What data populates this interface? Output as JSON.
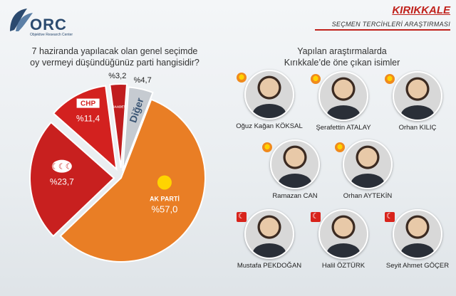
{
  "header": {
    "logo_text": "ORC",
    "logo_sub": "Objektive Research Center",
    "city": "KIRIKKALE",
    "subtitle": "SEÇMEN TERCİHLERİ ARAŞTIRMASI"
  },
  "question": {
    "line1": "7 haziranda yapılacak olan genel seçimde",
    "line2": "oy vermeyi düşündüğünüz parti hangisidir?"
  },
  "people_title": {
    "line1": "Yapılan araştırmalarda",
    "line2": "Kırıkkale’de öne çıkan isimler"
  },
  "chart_data": {
    "type": "pie",
    "title": "",
    "slices": [
      {
        "label": "AK PARTİ",
        "value": 57.0,
        "display": "%57,0",
        "color": "#e97e25"
      },
      {
        "label": "MHP",
        "value": 23.7,
        "display": "%23,7",
        "color": "#c8201f"
      },
      {
        "label": "CHP",
        "value": 11.4,
        "display": "%11,4",
        "color": "#d3211f"
      },
      {
        "label": "SAADET",
        "value": 3.2,
        "display": "%3,2",
        "color": "#c01d1f"
      },
      {
        "label": "Diğer",
        "value": 4.7,
        "display": "%4,7",
        "color": "#c6cbd1"
      }
    ]
  },
  "people": [
    {
      "name": "Oğuz Kağan KÖKSAL",
      "party": "akp"
    },
    {
      "name": "Şerafettin ATALAY",
      "party": "akp"
    },
    {
      "name": "Orhan KILIÇ",
      "party": "akp"
    },
    {
      "name": "Ramazan CAN",
      "party": "akp"
    },
    {
      "name": "Orhan AYTEKİN",
      "party": "akp"
    },
    {
      "name": "Mustafa PEKDOĞAN",
      "party": "mhp"
    },
    {
      "name": "Halil ÖZTÜRK",
      "party": "mhp"
    },
    {
      "name": "Seyit Ahmet GÖÇER",
      "party": "mhp"
    }
  ]
}
